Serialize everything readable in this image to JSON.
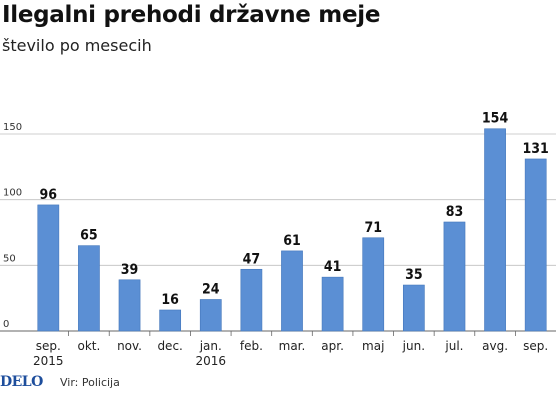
{
  "title": "Ilegalni prehodi državne meje",
  "subtitle": "število po mesecih",
  "footer": {
    "brand": "DELO",
    "source": "Vir: Policija"
  },
  "colors": {
    "bar": "#5b8fd4",
    "bar_edge": "#4477bb",
    "grid": "#bfbfbf",
    "axis": "#666666"
  },
  "chart_data": {
    "type": "bar",
    "categories": [
      "sep.\n2015",
      "okt.",
      "nov.",
      "dec.",
      "jan.\n2016",
      "feb.",
      "mar.",
      "apr.",
      "maj",
      "jun.",
      "jul.",
      "avg.",
      "sep."
    ],
    "values": [
      96,
      65,
      39,
      16,
      24,
      47,
      61,
      41,
      71,
      35,
      83,
      154,
      131
    ],
    "yticks": [
      0,
      50,
      100,
      150
    ],
    "ylim": [
      0,
      165
    ],
    "grid": true,
    "data_labels": true,
    "xlabel": "",
    "ylabel": ""
  }
}
